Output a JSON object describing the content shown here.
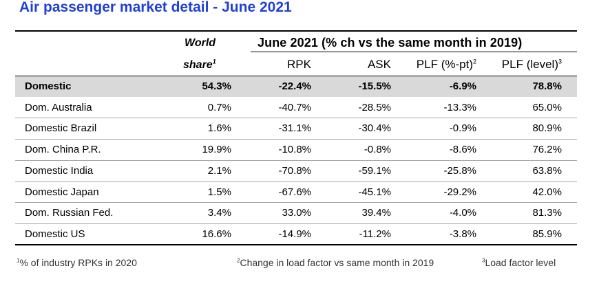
{
  "title": "Air passenger market detail - June 2021",
  "header": {
    "world_line1": "World",
    "world_line2": "share",
    "world_sup": "1",
    "group": "June 2021 (% ch vs the same month in 2019)",
    "rpk": "RPK",
    "ask": "ASK",
    "plf_pt": "PLF (%-pt)",
    "plf_pt_sup": "2",
    "plf_level": "PLF (level)",
    "plf_level_sup": "3"
  },
  "rows": [
    {
      "name": "Domestic",
      "share": "54.3%",
      "rpk": "-22.4%",
      "ask": "-15.5%",
      "plf_pt": "-6.9%",
      "plf_level": "78.8%"
    },
    {
      "name": "Dom. Australia",
      "share": "0.7%",
      "rpk": "-40.7%",
      "ask": "-28.5%",
      "plf_pt": "-13.3%",
      "plf_level": "65.0%"
    },
    {
      "name": "Domestic Brazil",
      "share": "1.6%",
      "rpk": "-31.1%",
      "ask": "-30.4%",
      "plf_pt": "-0.9%",
      "plf_level": "80.9%"
    },
    {
      "name": "Dom. China P.R.",
      "share": "19.9%",
      "rpk": "-10.8%",
      "ask": "-0.8%",
      "plf_pt": "-8.6%",
      "plf_level": "76.2%"
    },
    {
      "name": "Domestic India",
      "share": "2.1%",
      "rpk": "-70.8%",
      "ask": "-59.1%",
      "plf_pt": "-25.8%",
      "plf_level": "63.8%"
    },
    {
      "name": "Domestic Japan",
      "share": "1.5%",
      "rpk": "-67.6%",
      "ask": "-45.1%",
      "plf_pt": "-29.2%",
      "plf_level": "42.0%"
    },
    {
      "name": "Dom. Russian Fed.",
      "share": "3.4%",
      "rpk": "33.0%",
      "ask": "39.4%",
      "plf_pt": "-4.0%",
      "plf_level": "81.3%"
    },
    {
      "name": "Domestic US",
      "share": "16.6%",
      "rpk": "-14.9%",
      "ask": "-11.2%",
      "plf_pt": "-3.8%",
      "plf_level": "85.9%"
    }
  ],
  "footnotes": [
    {
      "sup": "1",
      "text": "% of industry RPKs in 2020"
    },
    {
      "sup": "2",
      "text": "Change in load factor vs same month in 2019"
    },
    {
      "sup": "3",
      "text": "Load factor level"
    }
  ]
}
